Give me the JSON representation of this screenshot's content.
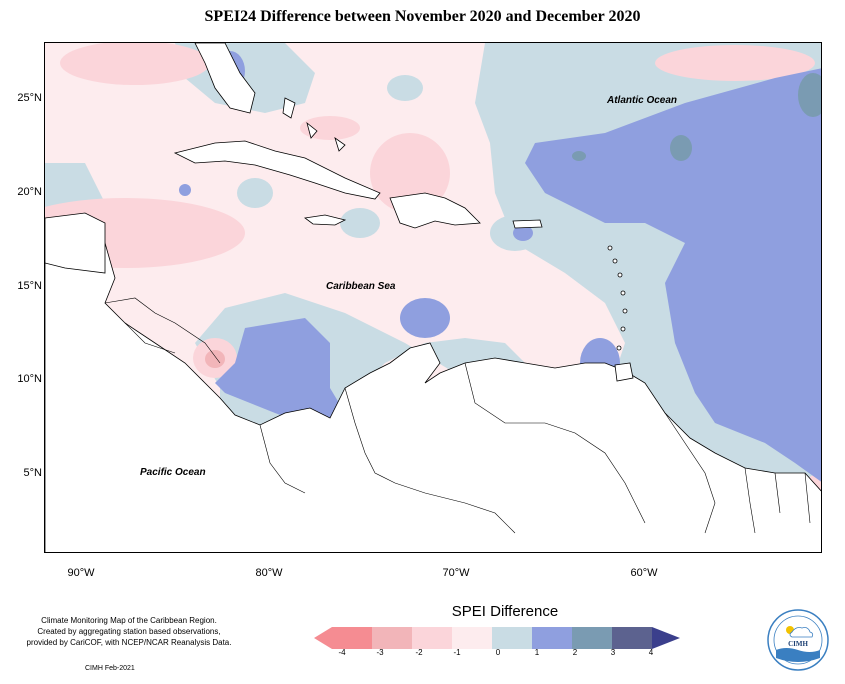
{
  "title": "SPEI24 Difference between November 2020 and December 2020",
  "map": {
    "lat_ticks": [
      "25°N",
      "20°N",
      "15°N",
      "10°N",
      "5°N"
    ],
    "lon_ticks": [
      "90°W",
      "80°W",
      "70°W",
      "60°W"
    ],
    "ocean_labels": {
      "atlantic": "Atlantic Ocean",
      "caribbean": "Caribbean Sea",
      "pacific": "Pacific Ocean"
    }
  },
  "legend": {
    "title": "SPEI Difference",
    "ticks": [
      "-4",
      "-3",
      "-2",
      "-1",
      "0",
      "1",
      "2",
      "3",
      "4"
    ],
    "colors": [
      "#f58c92",
      "#f2b5b9",
      "#fbd5da",
      "#fdecee",
      "#c9dce4",
      "#8f9fdf",
      "#7a9bb2",
      "#5c628f",
      "#3b3f8c"
    ]
  },
  "credits": {
    "line1": "Climate Monitoring Map of the Caribbean Region.",
    "line2": "Created by aggregating station based observations,",
    "line3": "provided by CariCOF, with NCEP/NCAR Reanalysis Data.",
    "date": "CIMH Feb-2021"
  },
  "logo": {
    "label": "CIMH"
  },
  "colors": {
    "neg1": "#fdecee",
    "neg2": "#fbd5da",
    "neg3": "#f2b5b9",
    "pos0": "#c9dce4",
    "pos1": "#8f9fdf",
    "pos2": "#7a9bb2",
    "pos3": "#5c628f"
  }
}
